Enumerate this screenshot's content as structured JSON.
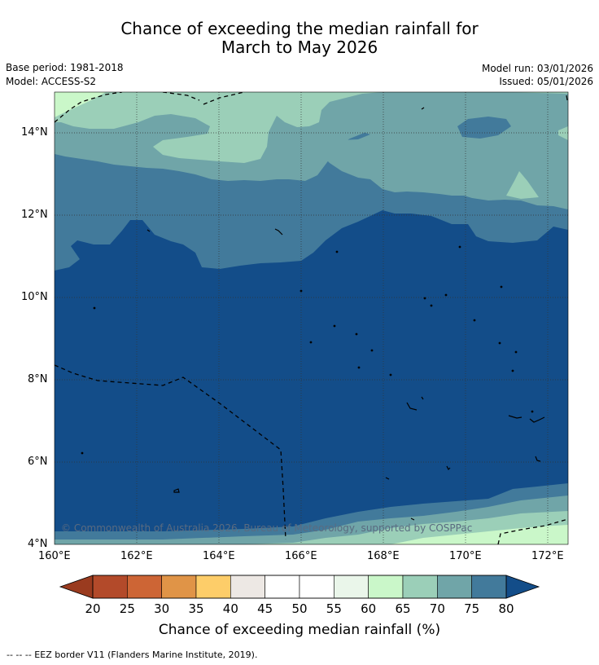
{
  "title": {
    "line1": "Chance of exceeding the median rainfall for",
    "line2": "March to May 2026"
  },
  "meta": {
    "base_period": "Base period: 1981-2018",
    "model": "Model: ACCESS-S2",
    "model_run": "Model run: 03/01/2026",
    "issued": "Issued: 05/01/2026"
  },
  "map": {
    "lat_ticks": [
      "14°N",
      "12°N",
      "10°N",
      "8°N",
      "6°N",
      "4°N"
    ],
    "lon_ticks": [
      "160°E",
      "162°E",
      "164°E",
      "166°E",
      "168°E",
      "170°E",
      "172°E"
    ],
    "copyright": "© Commonwealth of Australia 2026, Bureau of Meteorology, supported by COSPPac"
  },
  "colorbar": {
    "ticks": [
      "20",
      "25",
      "30",
      "35",
      "40",
      "45",
      "50",
      "55",
      "60",
      "65",
      "70",
      "75",
      "80"
    ],
    "colors": [
      "#b34a2a",
      "#cd6535",
      "#e09447",
      "#fdcd69",
      "#ede8e4",
      "#ffffff",
      "#ffffff",
      "#eaf6ea",
      "#caf7c9",
      "#9bcfb8",
      "#70a5a8",
      "#427a9b"
    ],
    "under_color": "#9a3b1f",
    "over_color": "#134d89",
    "label": "Chance of exceeding median rainfall (%)"
  },
  "footer": "--  --  -- EEZ border V11 (Flanders Marine Institute, 2019)."
}
